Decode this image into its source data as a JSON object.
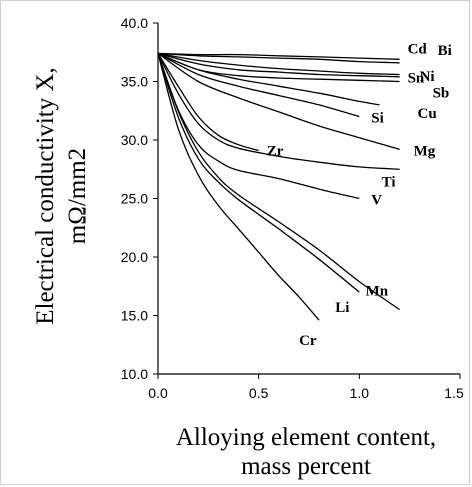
{
  "chart_data": {
    "type": "line",
    "title": "",
    "xlabel": [
      "Alloying element content,",
      "mass percent"
    ],
    "ylabel": [
      "Electrical conductivity X,",
      "mΩ/mm2"
    ],
    "xlim": [
      0.0,
      1.5
    ],
    "ylim": [
      10.0,
      40.0
    ],
    "xticks": [
      "0.0",
      "0.5",
      "1.0",
      "1.5"
    ],
    "yticks": [
      "10.0",
      "15.0",
      "20.0",
      "25.0",
      "30.0",
      "35.0",
      "40.0"
    ],
    "grid": false,
    "legend": "none",
    "series": [
      {
        "name": "Cd",
        "x": [
          0,
          0.2,
          0.4,
          0.6,
          0.8,
          1.0,
          1.2
        ],
        "y": [
          37.4,
          37.3,
          37.3,
          37.2,
          37.1,
          37.0,
          36.9
        ]
      },
      {
        "name": "Bi",
        "x": [
          0,
          0.2,
          0.4,
          0.6,
          0.8,
          1.0,
          1.2
        ],
        "y": [
          37.4,
          37.2,
          37.1,
          37.0,
          36.9,
          36.7,
          36.6
        ]
      },
      {
        "name": "Sn",
        "x": [
          0,
          0.2,
          0.4,
          0.6,
          0.8,
          1.0,
          1.2
        ],
        "y": [
          37.4,
          36.8,
          36.4,
          36.1,
          35.9,
          35.7,
          35.6
        ]
      },
      {
        "name": "Ni",
        "x": [
          0,
          0.2,
          0.4,
          0.6,
          0.8,
          1.0,
          1.2
        ],
        "y": [
          37.4,
          36.5,
          36.0,
          35.8,
          35.6,
          35.5,
          35.4
        ]
      },
      {
        "name": "Sb",
        "x": [
          0,
          0.2,
          0.4,
          0.6,
          0.8,
          1.0,
          1.2
        ],
        "y": [
          37.4,
          36.0,
          35.5,
          35.3,
          35.2,
          35.1,
          35.0
        ]
      },
      {
        "name": "Cu",
        "x": [
          0,
          0.2,
          0.4,
          0.6,
          0.8,
          1.0,
          1.1
        ],
        "y": [
          37.4,
          36.0,
          35.2,
          34.6,
          34.0,
          33.3,
          33.0
        ]
      },
      {
        "name": "Si",
        "x": [
          0,
          0.2,
          0.4,
          0.6,
          0.8,
          1.0
        ],
        "y": [
          37.4,
          35.6,
          34.6,
          33.8,
          33.0,
          32.0
        ]
      },
      {
        "name": "Mg",
        "x": [
          0,
          0.2,
          0.4,
          0.6,
          0.8,
          1.0,
          1.2
        ],
        "y": [
          37.4,
          35.0,
          33.6,
          32.4,
          31.2,
          30.2,
          29.2
        ]
      },
      {
        "name": "Ti",
        "x": [
          0,
          0.1,
          0.2,
          0.3,
          0.4,
          0.6,
          0.8,
          1.0,
          1.2
        ],
        "y": [
          37.4,
          34.0,
          31.4,
          30.0,
          29.3,
          28.6,
          28.1,
          27.7,
          27.5
        ]
      },
      {
        "name": "Zr",
        "x": [
          0,
          0.1,
          0.2,
          0.3,
          0.4,
          0.5
        ],
        "y": [
          37.4,
          34.6,
          32.0,
          30.4,
          29.6,
          29.1
        ]
      },
      {
        "name": "V",
        "x": [
          0,
          0.1,
          0.2,
          0.3,
          0.4,
          0.6,
          0.8,
          1.0
        ],
        "y": [
          37.4,
          32.6,
          29.6,
          28.2,
          27.4,
          26.7,
          25.8,
          25.0
        ]
      },
      {
        "name": "Mn",
        "x": [
          0,
          0.1,
          0.2,
          0.3,
          0.4,
          0.6,
          0.8,
          1.0,
          1.2
        ],
        "y": [
          37.4,
          32.5,
          29.0,
          26.8,
          25.3,
          23.0,
          20.6,
          17.9,
          15.5
        ]
      },
      {
        "name": "Li",
        "x": [
          0,
          0.1,
          0.2,
          0.3,
          0.4,
          0.6,
          0.8,
          1.0
        ],
        "y": [
          37.4,
          32.0,
          28.4,
          26.4,
          24.9,
          22.4,
          19.8,
          17.0
        ]
      },
      {
        "name": "Cr",
        "x": [
          0,
          0.1,
          0.2,
          0.3,
          0.4,
          0.5,
          0.6,
          0.7,
          0.8
        ],
        "y": [
          37.4,
          31.0,
          27.0,
          24.4,
          22.4,
          20.4,
          18.4,
          16.6,
          14.6
        ]
      }
    ]
  }
}
